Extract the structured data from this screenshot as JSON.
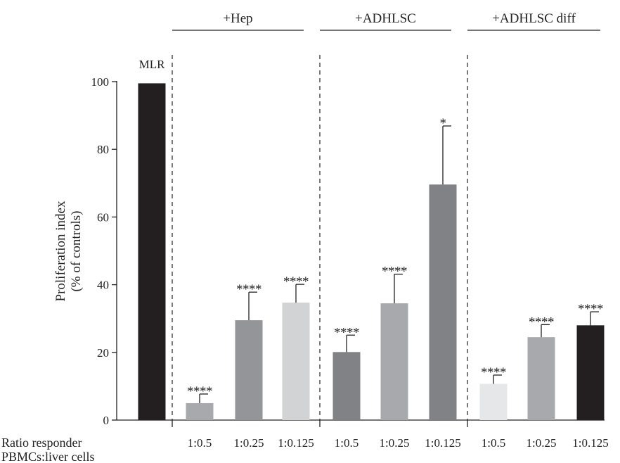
{
  "chart_data": {
    "type": "bar",
    "ylabel_line1": "Proliferation index",
    "ylabel_line2": "(% of controls)",
    "ylim": [
      0,
      100
    ],
    "yticks": [
      0,
      20,
      40,
      60,
      80,
      100
    ],
    "ratio_label_line1": "Ratio responder",
    "ratio_label_line2": "PBMCs:liver cells",
    "groups": [
      {
        "name": "+Hep"
      },
      {
        "name": "+ADHLSC"
      },
      {
        "name": "+ADHLSC diff"
      }
    ],
    "bars": [
      {
        "group": "",
        "category": "",
        "label": "MLR",
        "value": 99.5,
        "error": 0,
        "sig": "",
        "color": "#231f20"
      },
      {
        "group": "+Hep",
        "category": "1:0.5",
        "label": "",
        "value": 5,
        "error": 2.7,
        "sig": "****",
        "color": "#a7a9ac"
      },
      {
        "group": "+Hep",
        "category": "1:0.25",
        "label": "",
        "value": 29.5,
        "error": 8.3,
        "sig": "****",
        "color": "#939598"
      },
      {
        "group": "+Hep",
        "category": "1:0.125",
        "label": "",
        "value": 34.7,
        "error": 5.4,
        "sig": "****",
        "color": "#d1d3d4"
      },
      {
        "group": "+ADHLSC",
        "category": "1:0.5",
        "label": "",
        "value": 20.1,
        "error": 5,
        "sig": "****",
        "color": "#808285"
      },
      {
        "group": "+ADHLSC",
        "category": "1:0.25",
        "label": "",
        "value": 34.5,
        "error": 8.6,
        "sig": "****",
        "color": "#a7a9ac"
      },
      {
        "group": "+ADHLSC",
        "category": "1:0.125",
        "label": "",
        "value": 69.6,
        "error": 17.3,
        "sig": "*",
        "color": "#808285"
      },
      {
        "group": "+ADHLSC diff",
        "category": "1:0.5",
        "label": "",
        "value": 10.7,
        "error": 2.6,
        "sig": "****",
        "color": "#e6e7e8"
      },
      {
        "group": "+ADHLSC diff",
        "category": "1:0.25",
        "label": "",
        "value": 24.5,
        "error": 3.7,
        "sig": "****",
        "color": "#a7a9ac"
      },
      {
        "group": "+ADHLSC diff",
        "category": "1:0.125",
        "label": "",
        "value": 28,
        "error": 4,
        "sig": "****",
        "color": "#231f20"
      }
    ]
  }
}
